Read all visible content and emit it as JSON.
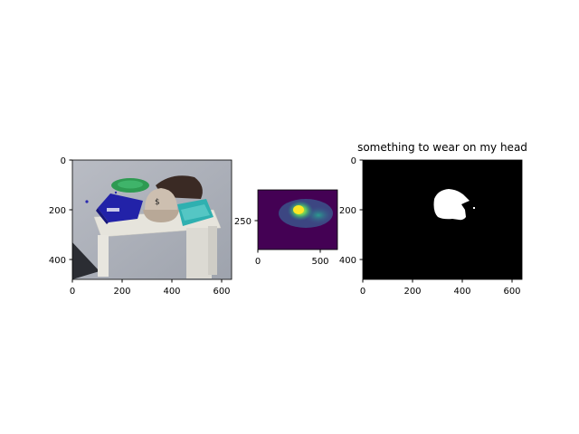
{
  "panels": [
    {
      "kind": "rgb-photo",
      "title": "",
      "x_ticks": [
        "0",
        "200",
        "400",
        "600"
      ],
      "y_ticks": [
        "0",
        "200",
        "400"
      ]
    },
    {
      "kind": "heatmap",
      "colormap": "viridis",
      "title": "",
      "x_ticks": [
        "0",
        "500"
      ],
      "y_ticks": [
        "250"
      ]
    },
    {
      "kind": "binary-mask",
      "title": "something to wear on my head",
      "x_ticks": [
        "0",
        "200",
        "400",
        "600"
      ],
      "y_ticks": [
        "0",
        "200",
        "400"
      ]
    }
  ],
  "colors": {
    "mask_bg": "#000000",
    "mask_fg": "#ffffff",
    "viridis_low": "#440154",
    "viridis_mid": "#21918c",
    "viridis_high": "#fde725"
  },
  "icons": [
    "photo-of-table",
    "cap-object",
    "lunchbox-object",
    "plate-object"
  ]
}
